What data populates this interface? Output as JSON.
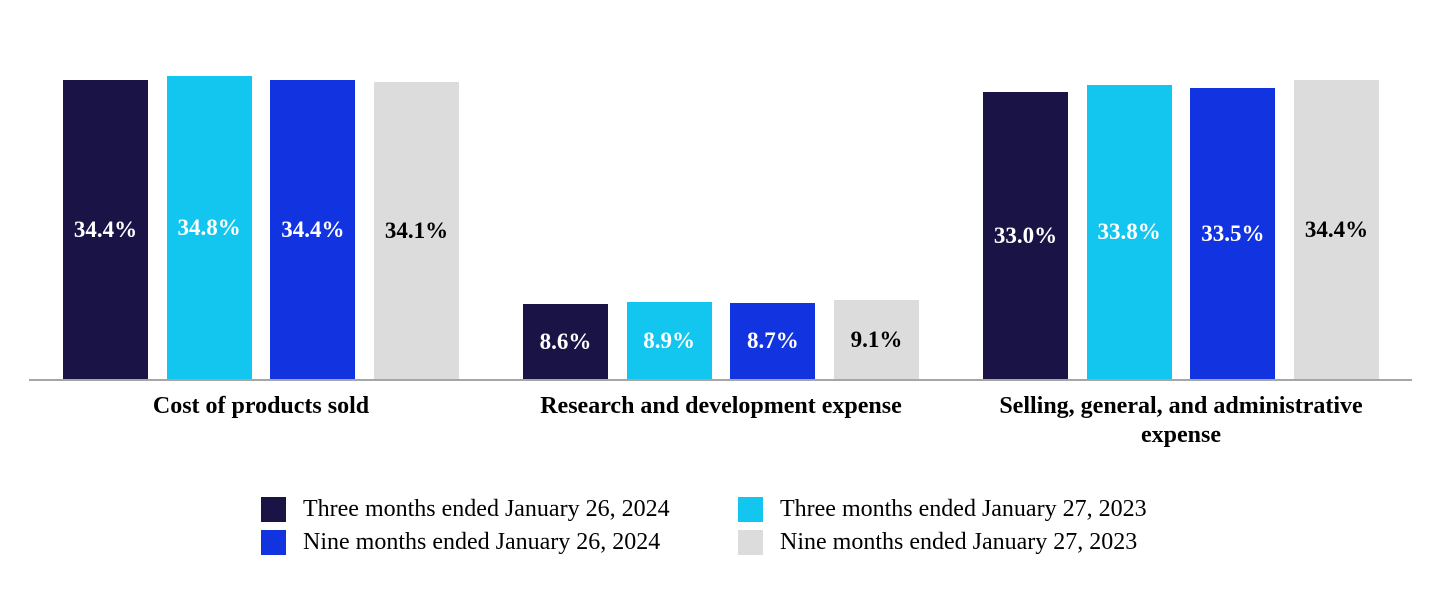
{
  "chart_data": {
    "type": "bar",
    "title": "",
    "xlabel": "",
    "ylabel": "",
    "ylim": [
      0,
      40
    ],
    "grid": false,
    "legend_position": "bottom",
    "legend_columns": 2,
    "value_label_format": "percent",
    "categories": [
      "Cost of products sold",
      "Research and development expense",
      "Selling, general, and administrative expense"
    ],
    "series": [
      {
        "name": "Three months ended January 26, 2024",
        "color": "#1A1446",
        "label_color": "#FFFFFF",
        "values": [
          34.4,
          8.6,
          33.0
        ],
        "labels": [
          "34.4%",
          "8.6%",
          "33.0%"
        ]
      },
      {
        "name": "Three months ended January 27, 2023",
        "color": "#12C6F0",
        "label_color": "#FFFFFF",
        "values": [
          34.8,
          8.9,
          33.8
        ],
        "labels": [
          "34.8%",
          "8.9%",
          "33.8%"
        ]
      },
      {
        "name": "Nine months ended January 26, 2024",
        "color": "#1233E0",
        "label_color": "#FFFFFF",
        "values": [
          34.4,
          8.7,
          33.5
        ],
        "labels": [
          "34.4%",
          "8.7%",
          "33.5%"
        ]
      },
      {
        "name": "Nine months ended January 27, 2023",
        "color": "#DCDCDC",
        "label_color": "#000000",
        "values": [
          34.1,
          9.1,
          34.4
        ],
        "labels": [
          "34.1%",
          "9.1%",
          "34.4%"
        ]
      }
    ],
    "axis_line_color": "#A6A6A6"
  }
}
